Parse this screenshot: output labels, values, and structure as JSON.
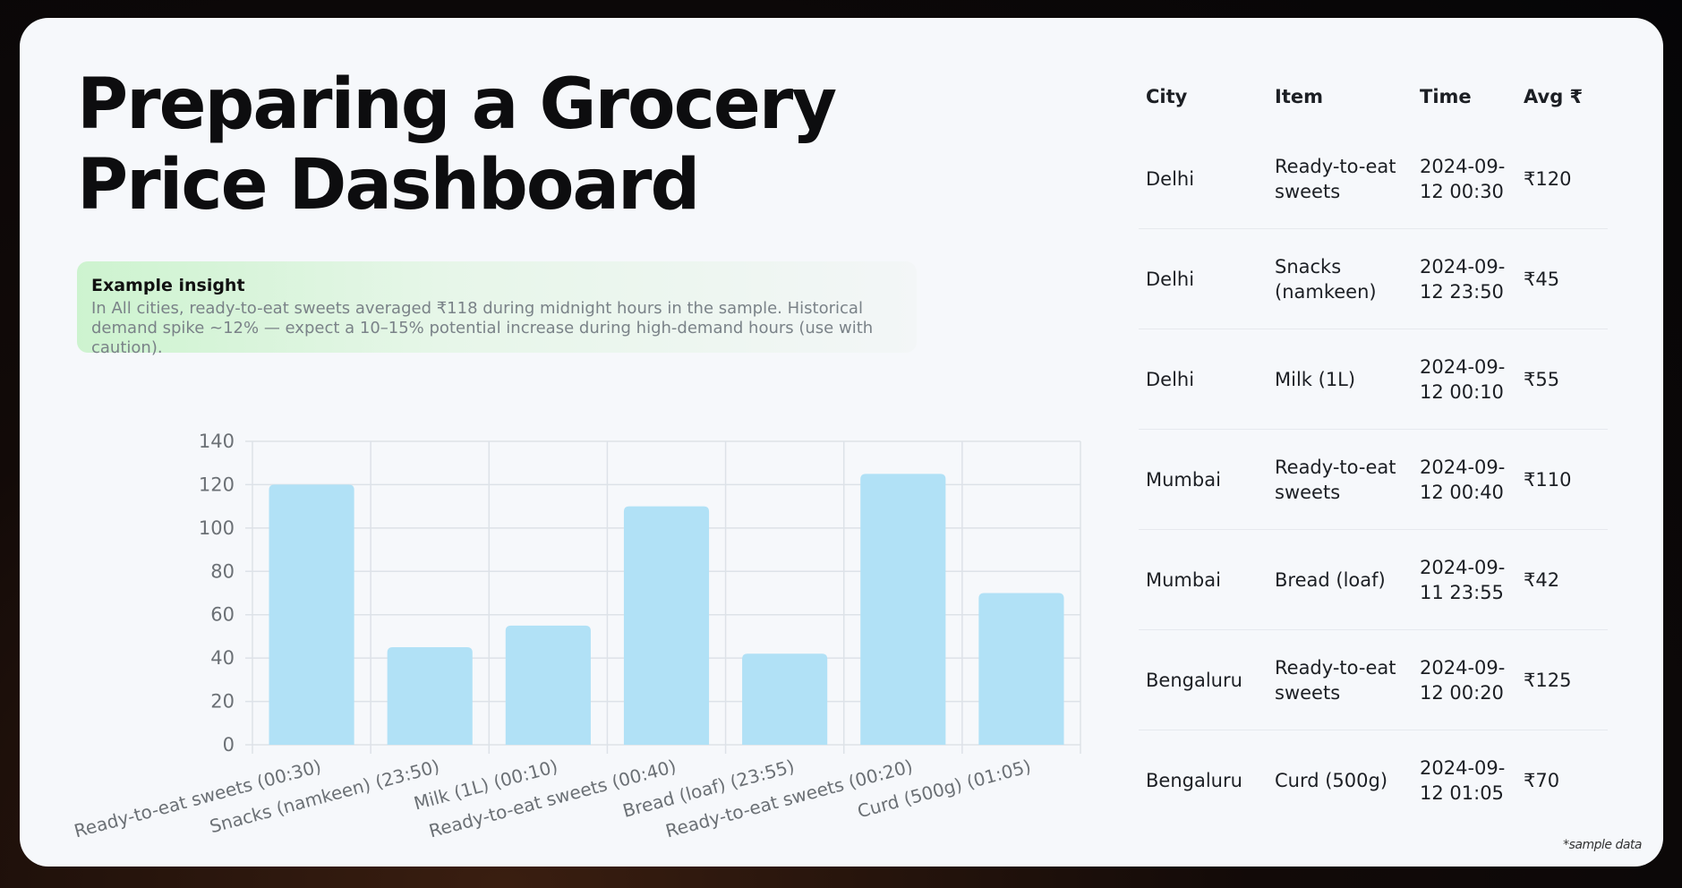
{
  "title": "Preparing a Grocery Price Dashboard",
  "insight": {
    "heading": "Example insight",
    "body": "In All cities, ready-to-eat sweets averaged ₹118 during midnight hours in the sample. Historical demand spike ~12% — expect a 10–15% potential increase during high-demand hours (use with caution)."
  },
  "chart_data": {
    "type": "bar",
    "categories": [
      "Ready-to-eat sweets (00:30)",
      "Snacks (namkeen) (23:50)",
      "Milk (1L) (00:10)",
      "Ready-to-eat sweets (00:40)",
      "Bread (loaf) (23:55)",
      "Ready-to-eat sweets (00:20)",
      "Curd (500g) (01:05)"
    ],
    "values": [
      120,
      45,
      55,
      110,
      42,
      125,
      70
    ],
    "yticks": [
      0,
      20,
      40,
      60,
      80,
      100,
      120,
      140
    ],
    "ylim": [
      0,
      140
    ],
    "grid": true,
    "bar_color": "#b1e1f6",
    "grid_color": "#dde2e8",
    "axis_text_color": "#6b7075"
  },
  "table": {
    "headers": [
      "City",
      "Item",
      "Time",
      "Avg ₹"
    ],
    "rows": [
      [
        "Delhi",
        "Ready-to-eat sweets",
        "2024-09-12 00:30",
        "₹120"
      ],
      [
        "Delhi",
        "Snacks (namkeen)",
        "2024-09-12 23:50",
        "₹45"
      ],
      [
        "Delhi",
        "Milk (1L)",
        "2024-09-12 00:10",
        "₹55"
      ],
      [
        "Mumbai",
        "Ready-to-eat sweets",
        "2024-09-12 00:40",
        "₹110"
      ],
      [
        "Mumbai",
        "Bread (loaf)",
        "2024-09-11 23:55",
        "₹42"
      ],
      [
        "Bengaluru",
        "Ready-to-eat sweets",
        "2024-09-12 00:20",
        "₹125"
      ],
      [
        "Bengaluru",
        "Curd (500g)",
        "2024-09-12 01:05",
        "₹70"
      ]
    ]
  },
  "footnote": "*sample data"
}
